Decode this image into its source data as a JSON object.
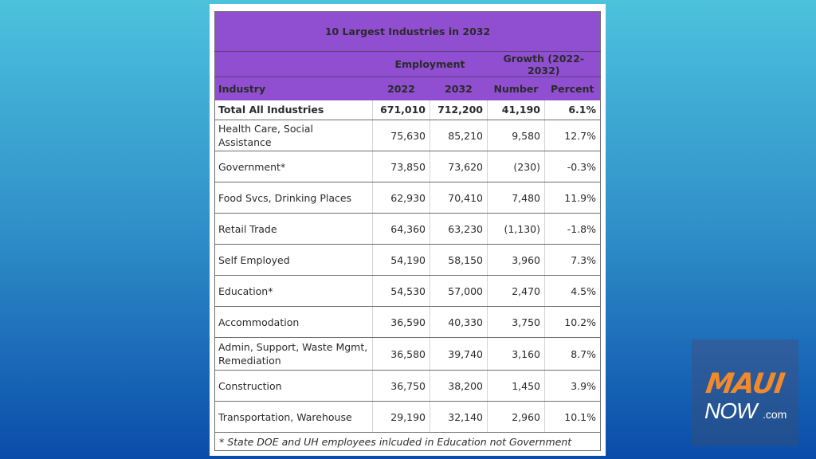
{
  "table": {
    "title": "10 Largest Industries in 2032",
    "group_headers": {
      "employment": "Employment",
      "growth": "Growth (2022-2032)"
    },
    "columns": [
      "Industry",
      "2022",
      "2032",
      "Number",
      "Percent"
    ],
    "total": {
      "industry": "Total All Industries",
      "y2022": "671,010",
      "y2032": "712,200",
      "number": "41,190",
      "percent": "6.1%"
    },
    "rows": [
      {
        "industry": "Health Care, Social Assistance",
        "y2022": "75,630",
        "y2032": "85,210",
        "number": "9,580",
        "percent": "12.7%"
      },
      {
        "industry": "Government*",
        "y2022": "73,850",
        "y2032": "73,620",
        "number": "(230)",
        "percent": "-0.3%"
      },
      {
        "industry": "Food Svcs, Drinking Places",
        "y2022": "62,930",
        "y2032": "70,410",
        "number": "7,480",
        "percent": "11.9%"
      },
      {
        "industry": "Retail Trade",
        "y2022": "64,360",
        "y2032": "63,230",
        "number": "(1,130)",
        "percent": "-1.8%"
      },
      {
        "industry": "Self Employed",
        "y2022": "54,190",
        "y2032": "58,150",
        "number": "3,960",
        "percent": "7.3%"
      },
      {
        "industry": "Education*",
        "y2022": "54,530",
        "y2032": "57,000",
        "number": "2,470",
        "percent": "4.5%"
      },
      {
        "industry": "Accommodation",
        "y2022": "36,590",
        "y2032": "40,330",
        "number": "3,750",
        "percent": "10.2%"
      },
      {
        "industry": "Admin, Support, Waste Mgmt, Remediation",
        "y2022": "36,580",
        "y2032": "39,740",
        "number": "3,160",
        "percent": "8.7%"
      },
      {
        "industry": "Construction",
        "y2022": "36,750",
        "y2032": "38,200",
        "number": "1,450",
        "percent": "3.9%"
      },
      {
        "industry": "Transportation, Warehouse",
        "y2022": "29,190",
        "y2032": "32,140",
        "number": "2,960",
        "percent": "10.1%"
      }
    ],
    "footnote": "* State DOE and UH employees inlcuded in Education not Government"
  },
  "logo": {
    "maui": "MAUI",
    "now": "NOW",
    "com": ".com"
  },
  "colors": {
    "header_purple": "#904fd0",
    "logo_orange": "#f08a2c",
    "logo_bg": "#2a5a98"
  }
}
